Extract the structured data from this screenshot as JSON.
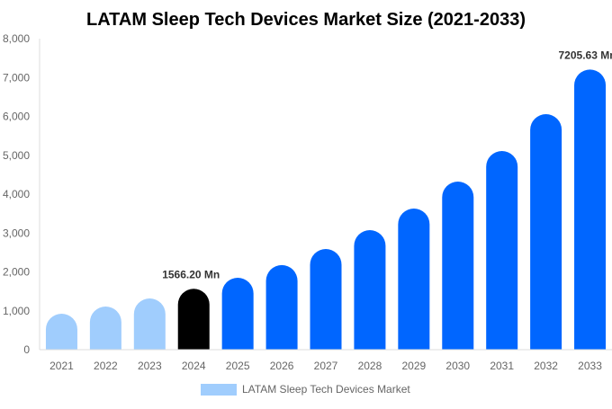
{
  "chart_data": {
    "type": "bar",
    "title": "LATAM Sleep Tech Devices Market Size (2021-2033)",
    "categories": [
      "2021",
      "2022",
      "2023",
      "2024",
      "2025",
      "2026",
      "2027",
      "2028",
      "2029",
      "2030",
      "2031",
      "2032",
      "2033"
    ],
    "series": [
      {
        "name": "LATAM Sleep Tech Devices Market",
        "values": [
          925,
          1110,
          1318,
          1566.2,
          1850,
          2175,
          2590,
          3075,
          3630,
          4324,
          5110,
          6058,
          7205.63
        ]
      }
    ],
    "data_labels": [
      {
        "category": "2024",
        "text": "1566.20 Mn"
      },
      {
        "category": "2033",
        "text": "7205.63 Mn"
      }
    ],
    "ylim": [
      0,
      8000
    ],
    "yticks": [
      0,
      1000,
      2000,
      3000,
      4000,
      5000,
      6000,
      7000,
      8000
    ],
    "ytick_labels": [
      "0",
      "1,000",
      "2,000",
      "3,000",
      "4,000",
      "5,000",
      "6,000",
      "7,000",
      "8,000"
    ],
    "xlabel": "",
    "ylabel": "",
    "grid": false,
    "legend_position": "bottom",
    "colors": {
      "historical": "#a0cdfd",
      "base_year": "#000000",
      "forecast": "#0066ff"
    }
  }
}
